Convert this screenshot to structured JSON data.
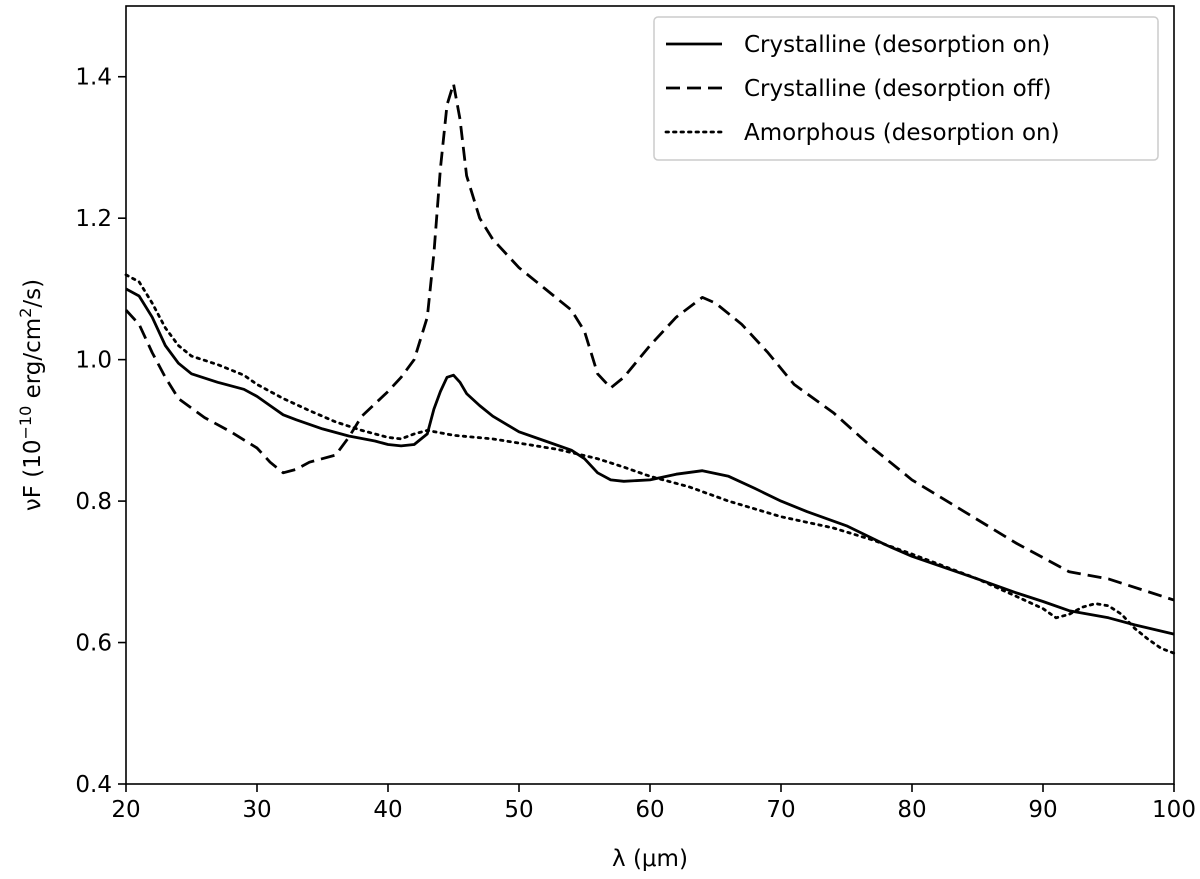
{
  "chart_data": {
    "type": "line",
    "title": "",
    "xlabel": "λ (μm)",
    "ylabel": {
      "prefix": "νF (10",
      "exp1": "−10",
      "mid": " erg/cm",
      "exp2": "2",
      "suffix": "/s)"
    },
    "xlim": [
      20,
      100
    ],
    "ylim": [
      0.4,
      1.5
    ],
    "xticks": [
      20,
      30,
      40,
      50,
      60,
      70,
      80,
      90,
      100
    ],
    "yticks": [
      0.4,
      0.6,
      0.8,
      1.0,
      1.2,
      1.4
    ],
    "xtick_labels": [
      "20",
      "30",
      "40",
      "50",
      "60",
      "70",
      "80",
      "90",
      "100"
    ],
    "ytick_labels": [
      "0.4",
      "0.6",
      "0.8",
      "1.0",
      "1.2",
      "1.4"
    ],
    "grid": false,
    "legend_position": "top-right",
    "series": [
      {
        "name": "Crystalline (desorption on)",
        "linestyle": "solid",
        "color": "#000000",
        "points": [
          [
            20,
            1.1
          ],
          [
            21,
            1.09
          ],
          [
            22,
            1.06
          ],
          [
            23,
            1.02
          ],
          [
            24,
            0.995
          ],
          [
            25,
            0.98
          ],
          [
            27,
            0.968
          ],
          [
            29,
            0.958
          ],
          [
            30,
            0.948
          ],
          [
            31,
            0.935
          ],
          [
            32,
            0.922
          ],
          [
            33,
            0.915
          ],
          [
            35,
            0.902
          ],
          [
            37,
            0.892
          ],
          [
            39,
            0.885
          ],
          [
            40,
            0.88
          ],
          [
            41,
            0.878
          ],
          [
            42,
            0.88
          ],
          [
            43,
            0.895
          ],
          [
            43.5,
            0.93
          ],
          [
            44,
            0.955
          ],
          [
            44.5,
            0.975
          ],
          [
            45,
            0.978
          ],
          [
            45.5,
            0.968
          ],
          [
            46,
            0.952
          ],
          [
            47,
            0.935
          ],
          [
            48,
            0.92
          ],
          [
            50,
            0.898
          ],
          [
            52,
            0.885
          ],
          [
            54,
            0.872
          ],
          [
            55,
            0.86
          ],
          [
            56,
            0.84
          ],
          [
            57,
            0.83
          ],
          [
            58,
            0.828
          ],
          [
            60,
            0.83
          ],
          [
            62,
            0.838
          ],
          [
            64,
            0.843
          ],
          [
            66,
            0.835
          ],
          [
            68,
            0.818
          ],
          [
            70,
            0.8
          ],
          [
            72,
            0.785
          ],
          [
            75,
            0.765
          ],
          [
            78,
            0.738
          ],
          [
            80,
            0.722
          ],
          [
            85,
            0.69
          ],
          [
            88,
            0.67
          ],
          [
            90,
            0.658
          ],
          [
            92,
            0.645
          ],
          [
            95,
            0.635
          ],
          [
            97,
            0.625
          ],
          [
            100,
            0.612
          ]
        ]
      },
      {
        "name": "Crystalline (desorption off)",
        "linestyle": "dashed",
        "color": "#000000",
        "points": [
          [
            20,
            1.07
          ],
          [
            21,
            1.05
          ],
          [
            22,
            1.01
          ],
          [
            23,
            0.975
          ],
          [
            24,
            0.945
          ],
          [
            26,
            0.918
          ],
          [
            28,
            0.898
          ],
          [
            30,
            0.875
          ],
          [
            31,
            0.855
          ],
          [
            32,
            0.84
          ],
          [
            33,
            0.845
          ],
          [
            34,
            0.855
          ],
          [
            36,
            0.865
          ],
          [
            37,
            0.89
          ],
          [
            38,
            0.92
          ],
          [
            40,
            0.955
          ],
          [
            41,
            0.975
          ],
          [
            42,
            1.0
          ],
          [
            43,
            1.06
          ],
          [
            43.5,
            1.15
          ],
          [
            44,
            1.27
          ],
          [
            44.5,
            1.36
          ],
          [
            45,
            1.39
          ],
          [
            45.5,
            1.34
          ],
          [
            46,
            1.26
          ],
          [
            47,
            1.2
          ],
          [
            48,
            1.17
          ],
          [
            50,
            1.13
          ],
          [
            52,
            1.1
          ],
          [
            54,
            1.07
          ],
          [
            55,
            1.04
          ],
          [
            56,
            0.98
          ],
          [
            57,
            0.96
          ],
          [
            58,
            0.975
          ],
          [
            60,
            1.02
          ],
          [
            62,
            1.06
          ],
          [
            64,
            1.088
          ],
          [
            65,
            1.08
          ],
          [
            67,
            1.05
          ],
          [
            69,
            1.01
          ],
          [
            71,
            0.965
          ],
          [
            74,
            0.925
          ],
          [
            77,
            0.875
          ],
          [
            80,
            0.83
          ],
          [
            84,
            0.785
          ],
          [
            88,
            0.74
          ],
          [
            92,
            0.7
          ],
          [
            95,
            0.69
          ],
          [
            100,
            0.66
          ]
        ]
      },
      {
        "name": "Amorphous (desorption on)",
        "linestyle": "dotted",
        "color": "#000000",
        "points": [
          [
            20,
            1.12
          ],
          [
            21,
            1.11
          ],
          [
            22,
            1.08
          ],
          [
            23,
            1.045
          ],
          [
            24,
            1.02
          ],
          [
            25,
            1.005
          ],
          [
            27,
            0.993
          ],
          [
            29,
            0.978
          ],
          [
            30,
            0.965
          ],
          [
            32,
            0.945
          ],
          [
            34,
            0.928
          ],
          [
            36,
            0.912
          ],
          [
            38,
            0.9
          ],
          [
            40,
            0.89
          ],
          [
            41,
            0.888
          ],
          [
            42,
            0.895
          ],
          [
            43,
            0.9
          ],
          [
            45,
            0.893
          ],
          [
            48,
            0.888
          ],
          [
            50,
            0.882
          ],
          [
            53,
            0.873
          ],
          [
            56,
            0.86
          ],
          [
            58,
            0.848
          ],
          [
            60,
            0.835
          ],
          [
            63,
            0.82
          ],
          [
            66,
            0.8
          ],
          [
            70,
            0.778
          ],
          [
            74,
            0.762
          ],
          [
            77,
            0.745
          ],
          [
            80,
            0.725
          ],
          [
            85,
            0.69
          ],
          [
            88,
            0.665
          ],
          [
            90,
            0.648
          ],
          [
            91,
            0.635
          ],
          [
            92,
            0.64
          ],
          [
            93,
            0.65
          ],
          [
            94,
            0.655
          ],
          [
            95,
            0.652
          ],
          [
            96,
            0.64
          ],
          [
            97,
            0.62
          ],
          [
            98,
            0.605
          ],
          [
            99,
            0.592
          ],
          [
            100,
            0.585
          ]
        ]
      }
    ]
  }
}
